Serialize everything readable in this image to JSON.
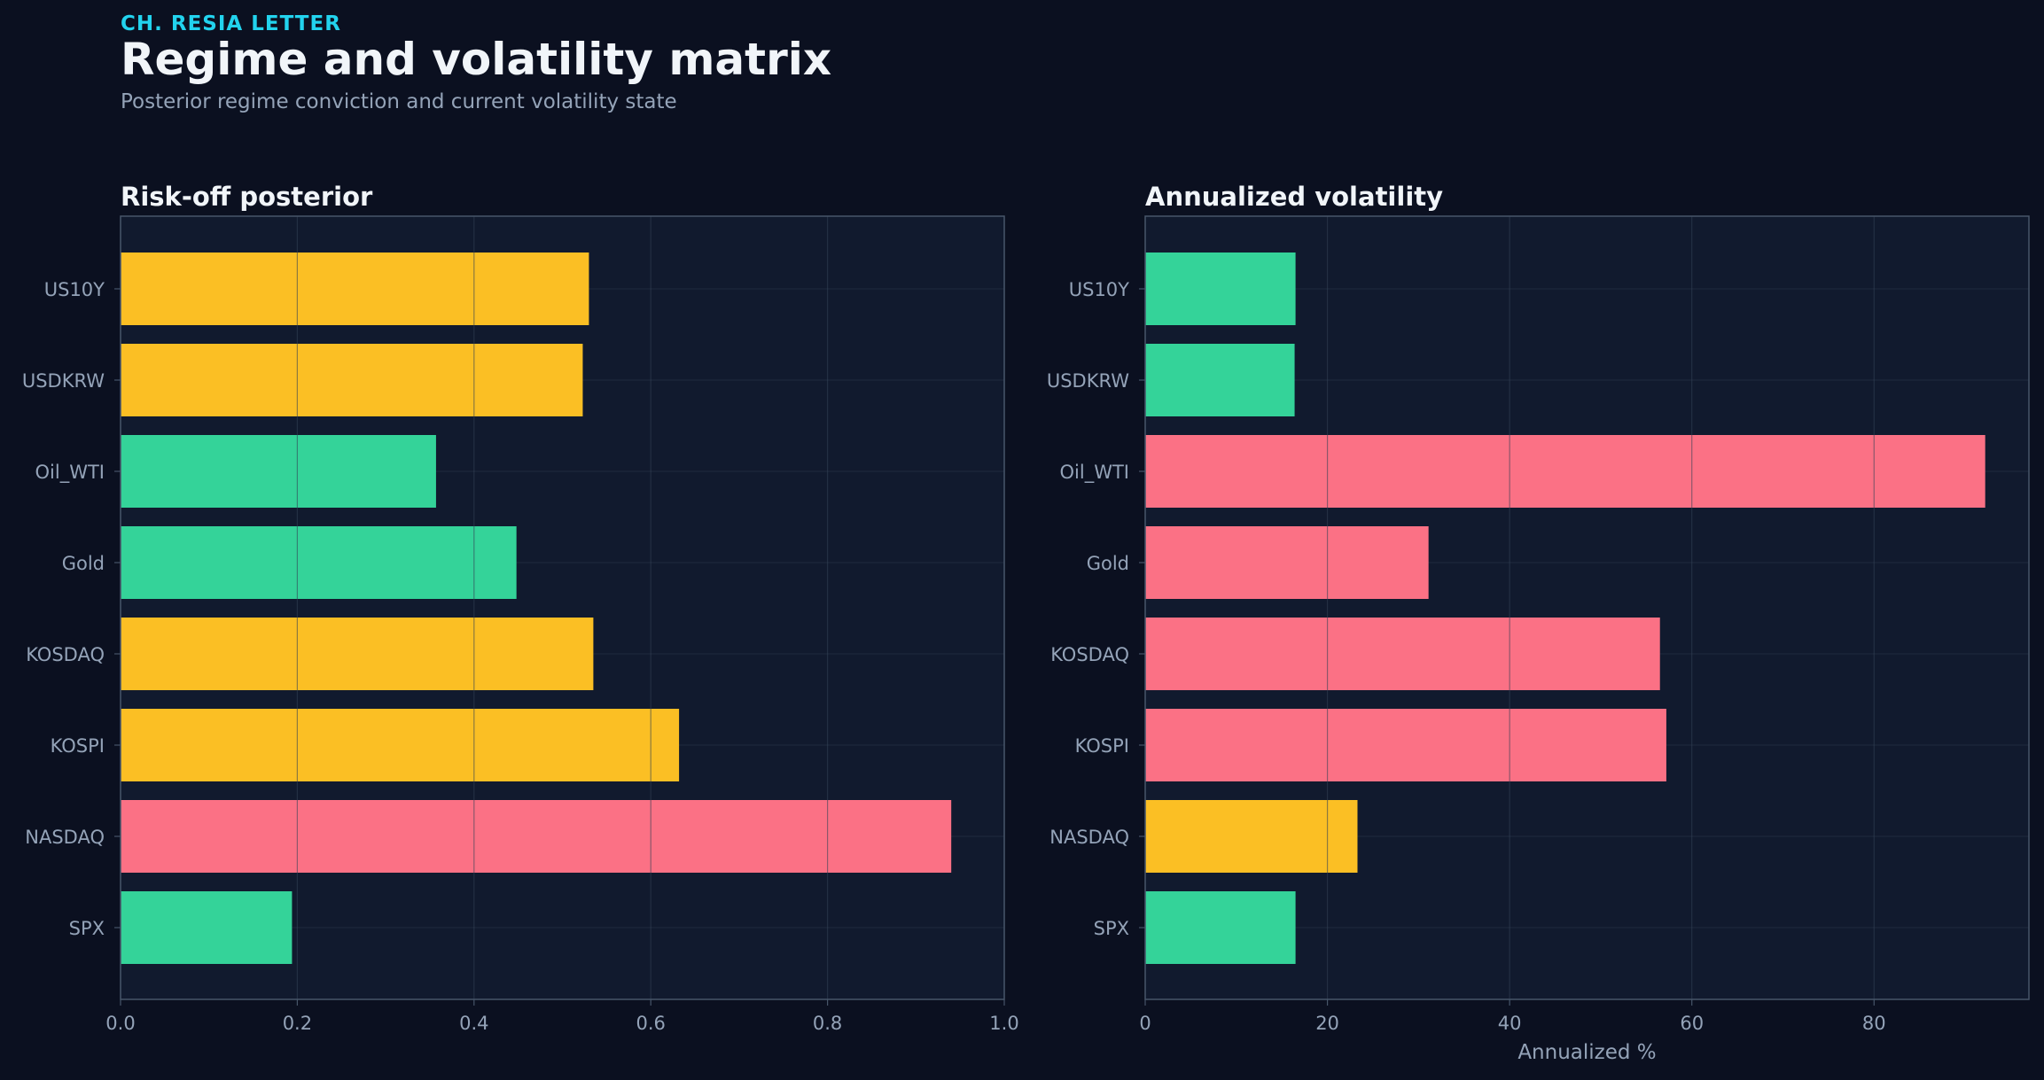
{
  "header": {
    "kicker": "CH. RESIA LETTER",
    "title": "Regime and volatility matrix",
    "subtitle": "Posterior regime conviction and current volatility state"
  },
  "colors": {
    "background": "#0b1020",
    "panel": "#111a2e",
    "panel_border": "#475569",
    "grid": "#334155",
    "tick_text": "#94a3b8",
    "title_text": "#f1f5f9",
    "green": "#34d399",
    "amber": "#fbbf24",
    "red": "#fb7185",
    "accent": "#22d3ee"
  },
  "chart_data": [
    {
      "type": "bar",
      "orientation": "horizontal",
      "title": "Risk-off posterior",
      "xlabel": "",
      "ylabel": "",
      "categories": [
        "US10Y",
        "USDKRW",
        "Oil_WTI",
        "Gold",
        "KOSDAQ",
        "KOSPI",
        "NASDAQ",
        "SPX"
      ],
      "values": [
        0.53,
        0.523,
        0.357,
        0.448,
        0.535,
        0.632,
        0.94,
        0.194
      ],
      "bar_colors": [
        "amber",
        "amber",
        "green",
        "green",
        "amber",
        "amber",
        "red",
        "green"
      ],
      "xlim": [
        0,
        1.0
      ],
      "xticks": [
        0.0,
        0.2,
        0.4,
        0.6,
        0.8,
        1.0
      ],
      "xtick_labels": [
        "0.0",
        "0.2",
        "0.4",
        "0.6",
        "0.8",
        "1.0"
      ],
      "grid": true
    },
    {
      "type": "bar",
      "orientation": "horizontal",
      "title": "Annualized volatility",
      "xlabel": "Annualized %",
      "ylabel": "",
      "categories": [
        "US10Y",
        "USDKRW",
        "Oil_WTI",
        "Gold",
        "KOSDAQ",
        "KOSPI",
        "NASDAQ",
        "SPX"
      ],
      "values": [
        16.5,
        16.4,
        92.2,
        31.1,
        56.5,
        57.2,
        23.3,
        16.5
      ],
      "bar_colors": [
        "green",
        "green",
        "red",
        "red",
        "red",
        "red",
        "amber",
        "green"
      ],
      "xlim": [
        0,
        97
      ],
      "xticks": [
        0,
        20,
        40,
        60,
        80
      ],
      "xtick_labels": [
        "0",
        "20",
        "40",
        "60",
        "80"
      ],
      "grid": true
    }
  ]
}
